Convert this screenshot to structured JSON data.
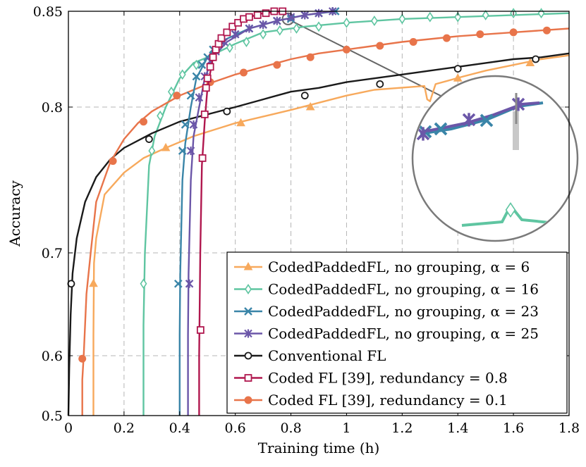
{
  "chart_data": {
    "type": "line",
    "title": "",
    "xlabel": "Training time (h)",
    "ylabel": "Accuracy",
    "xlim": [
      0,
      1.8
    ],
    "ylim": [
      0.5,
      0.85
    ],
    "x_ticks": [
      {
        "v": 0,
        "label": "0"
      },
      {
        "v": 0.2,
        "label": "0.2"
      },
      {
        "v": 0.4,
        "label": "0.4"
      },
      {
        "v": 0.6,
        "label": "0.6"
      },
      {
        "v": 0.8,
        "label": "0.8"
      },
      {
        "v": 1.0,
        "label": "1"
      },
      {
        "v": 1.2,
        "label": "1.2"
      },
      {
        "v": 1.4,
        "label": "1.4"
      },
      {
        "v": 1.6,
        "label": "1.6"
      },
      {
        "v": 1.8,
        "label": "1.8"
      }
    ],
    "y_ticks": [
      {
        "v": 0.5,
        "label": "0.5"
      },
      {
        "v": 0.6,
        "label": "0.6"
      },
      {
        "v": 0.7,
        "label": "0.7"
      },
      {
        "v": 0.8,
        "label": "0.8"
      },
      {
        "v": 0.85,
        "label": "0.85"
      }
    ],
    "y_scale": "nonlinear",
    "grid": true,
    "legend_position": "bottom-right",
    "series": [
      {
        "name": "CodedPaddedFL, no grouping, α = 6",
        "color": "#f7a95c",
        "marker": "triangle",
        "points": [
          [
            0.09,
            0.5
          ],
          [
            0.09,
            0.62
          ],
          [
            0.092,
            0.69
          ],
          [
            0.1,
            0.71
          ],
          [
            0.13,
            0.74
          ],
          [
            0.2,
            0.755
          ],
          [
            0.27,
            0.765
          ],
          [
            0.35,
            0.772
          ],
          [
            0.45,
            0.78
          ],
          [
            0.55,
            0.786
          ],
          [
            0.6,
            0.789
          ],
          [
            0.8,
            0.798
          ],
          [
            1.0,
            0.806
          ],
          [
            1.1,
            0.809
          ],
          [
            1.28,
            0.811
          ],
          [
            1.29,
            0.804
          ],
          [
            1.3,
            0.803
          ],
          [
            1.32,
            0.812
          ],
          [
            1.42,
            0.816
          ],
          [
            1.5,
            0.819
          ],
          [
            1.6,
            0.822
          ],
          [
            1.7,
            0.825
          ],
          [
            1.8,
            0.827
          ]
        ],
        "markers": [
          [
            0.09,
            0.67
          ],
          [
            0.35,
            0.772
          ],
          [
            0.62,
            0.789
          ],
          [
            0.87,
            0.8
          ],
          [
            1.4,
            0.815
          ],
          [
            1.66,
            0.823
          ]
        ]
      },
      {
        "name": "CodedPaddedFL, no grouping, α = 16",
        "color": "#5fc5a1",
        "marker": "diamond",
        "points": [
          [
            0.27,
            0.5
          ],
          [
            0.27,
            0.63
          ],
          [
            0.275,
            0.7
          ],
          [
            0.29,
            0.76
          ],
          [
            0.31,
            0.78
          ],
          [
            0.35,
            0.8
          ],
          [
            0.4,
            0.815
          ],
          [
            0.45,
            0.823
          ],
          [
            0.5,
            0.826
          ],
          [
            0.6,
            0.833
          ],
          [
            0.7,
            0.839
          ],
          [
            0.85,
            0.842
          ],
          [
            1.0,
            0.844
          ],
          [
            1.2,
            0.846
          ],
          [
            1.4,
            0.847
          ],
          [
            1.6,
            0.848
          ],
          [
            1.8,
            0.849
          ]
        ],
        "markers": [
          [
            0.27,
            0.67
          ],
          [
            0.3,
            0.77
          ],
          [
            0.33,
            0.794
          ],
          [
            0.37,
            0.808
          ],
          [
            0.41,
            0.817
          ],
          [
            0.46,
            0.822
          ],
          [
            0.52,
            0.827
          ],
          [
            0.58,
            0.831
          ],
          [
            0.64,
            0.834
          ],
          [
            0.7,
            0.838
          ],
          [
            0.76,
            0.84
          ],
          [
            0.82,
            0.841
          ],
          [
            0.9,
            0.842
          ],
          [
            1.0,
            0.844
          ],
          [
            1.1,
            0.845
          ],
          [
            1.2,
            0.846
          ],
          [
            1.3,
            0.847
          ],
          [
            1.4,
            0.847
          ],
          [
            1.5,
            0.848
          ],
          [
            1.6,
            0.849
          ],
          [
            1.7,
            0.849
          ]
        ]
      },
      {
        "name": "CodedPaddedFL, no grouping, α = 23",
        "color": "#3a85a8",
        "marker": "cross",
        "points": [
          [
            0.4,
            0.5
          ],
          [
            0.4,
            0.62
          ],
          [
            0.402,
            0.68
          ],
          [
            0.41,
            0.75
          ],
          [
            0.42,
            0.775
          ],
          [
            0.44,
            0.8
          ],
          [
            0.46,
            0.815
          ],
          [
            0.5,
            0.826
          ],
          [
            0.56,
            0.835
          ],
          [
            0.65,
            0.841
          ],
          [
            0.75,
            0.845
          ],
          [
            0.85,
            0.848
          ],
          [
            0.96,
            0.85
          ]
        ],
        "markers": [
          [
            0.395,
            0.67
          ],
          [
            0.41,
            0.77
          ],
          [
            0.42,
            0.788
          ],
          [
            0.44,
            0.806
          ],
          [
            0.46,
            0.816
          ],
          [
            0.48,
            0.822
          ],
          [
            0.5,
            0.826
          ],
          [
            0.52,
            0.83
          ],
          [
            0.55,
            0.834
          ],
          [
            0.6,
            0.838
          ],
          [
            0.65,
            0.841
          ],
          [
            0.7,
            0.843
          ],
          [
            0.75,
            0.845
          ],
          [
            0.8,
            0.846
          ],
          [
            0.85,
            0.848
          ],
          [
            0.9,
            0.849
          ],
          [
            0.96,
            0.85
          ]
        ]
      },
      {
        "name": "CodedPaddedFL, no grouping, α = 25",
        "color": "#6b56a8",
        "marker": "star",
        "points": [
          [
            0.43,
            0.5
          ],
          [
            0.43,
            0.62
          ],
          [
            0.432,
            0.68
          ],
          [
            0.44,
            0.75
          ],
          [
            0.45,
            0.78
          ],
          [
            0.47,
            0.8
          ],
          [
            0.49,
            0.815
          ],
          [
            0.52,
            0.826
          ],
          [
            0.57,
            0.834
          ],
          [
            0.65,
            0.841
          ],
          [
            0.75,
            0.845
          ],
          [
            0.85,
            0.848
          ],
          [
            0.95,
            0.85
          ]
        ],
        "markers": [
          [
            0.435,
            0.67
          ],
          [
            0.44,
            0.77
          ],
          [
            0.45,
            0.788
          ],
          [
            0.47,
            0.805
          ],
          [
            0.49,
            0.816
          ],
          [
            0.51,
            0.824
          ],
          [
            0.53,
            0.829
          ],
          [
            0.56,
            0.834
          ],
          [
            0.6,
            0.838
          ],
          [
            0.65,
            0.841
          ],
          [
            0.7,
            0.843
          ],
          [
            0.75,
            0.845
          ],
          [
            0.8,
            0.847
          ],
          [
            0.85,
            0.848
          ],
          [
            0.9,
            0.849
          ],
          [
            0.95,
            0.85
          ]
        ]
      },
      {
        "name": "Conventional FL",
        "color": "#1a1a1a",
        "marker": "circle-open",
        "points": [
          [
            0.0,
            0.5
          ],
          [
            0.003,
            0.58
          ],
          [
            0.008,
            0.64
          ],
          [
            0.015,
            0.68
          ],
          [
            0.03,
            0.71
          ],
          [
            0.06,
            0.735
          ],
          [
            0.1,
            0.752
          ],
          [
            0.15,
            0.764
          ],
          [
            0.2,
            0.772
          ],
          [
            0.3,
            0.782
          ],
          [
            0.4,
            0.79
          ],
          [
            0.5,
            0.795
          ],
          [
            0.6,
            0.8
          ],
          [
            0.7,
            0.804
          ],
          [
            0.8,
            0.808
          ],
          [
            0.9,
            0.81
          ],
          [
            1.0,
            0.813
          ],
          [
            1.1,
            0.815
          ],
          [
            1.2,
            0.817
          ],
          [
            1.3,
            0.819
          ],
          [
            1.4,
            0.821
          ],
          [
            1.5,
            0.823
          ],
          [
            1.6,
            0.825
          ],
          [
            1.7,
            0.826
          ],
          [
            1.8,
            0.828
          ]
        ],
        "markers": [
          [
            0.01,
            0.67
          ],
          [
            0.29,
            0.778
          ],
          [
            0.57,
            0.797
          ],
          [
            0.85,
            0.806
          ],
          [
            1.12,
            0.812
          ],
          [
            1.4,
            0.82
          ],
          [
            1.68,
            0.825
          ]
        ]
      },
      {
        "name": "Coded FL [39], redundancy = 0.8",
        "color": "#b0174e",
        "marker": "square-open",
        "points": [
          [
            0.47,
            0.5
          ],
          [
            0.47,
            0.6
          ],
          [
            0.474,
            0.7
          ],
          [
            0.48,
            0.76
          ],
          [
            0.49,
            0.79
          ],
          [
            0.5,
            0.81
          ],
          [
            0.52,
            0.826
          ],
          [
            0.55,
            0.836
          ],
          [
            0.6,
            0.843
          ],
          [
            0.65,
            0.847
          ],
          [
            0.7,
            0.849
          ],
          [
            0.77,
            0.85
          ]
        ],
        "markers": [
          [
            0.475,
            0.625
          ],
          [
            0.482,
            0.765
          ],
          [
            0.49,
            0.795
          ],
          [
            0.495,
            0.81
          ],
          [
            0.5,
            0.815
          ],
          [
            0.51,
            0.821
          ],
          [
            0.52,
            0.826
          ],
          [
            0.53,
            0.83
          ],
          [
            0.54,
            0.833
          ],
          [
            0.55,
            0.836
          ],
          [
            0.57,
            0.839
          ],
          [
            0.59,
            0.842
          ],
          [
            0.61,
            0.844
          ],
          [
            0.63,
            0.846
          ],
          [
            0.65,
            0.847
          ],
          [
            0.68,
            0.848
          ],
          [
            0.71,
            0.849
          ],
          [
            0.74,
            0.85
          ],
          [
            0.77,
            0.85
          ]
        ]
      },
      {
        "name": "Coded FL [39], redundancy = 0.1",
        "color": "#e8744a",
        "marker": "circle-filled",
        "points": [
          [
            0.05,
            0.5
          ],
          [
            0.05,
            0.56
          ],
          [
            0.055,
            0.6
          ],
          [
            0.065,
            0.66
          ],
          [
            0.08,
            0.7
          ],
          [
            0.1,
            0.735
          ],
          [
            0.15,
            0.762
          ],
          [
            0.2,
            0.778
          ],
          [
            0.25,
            0.789
          ],
          [
            0.3,
            0.797
          ],
          [
            0.4,
            0.806
          ],
          [
            0.5,
            0.812
          ],
          [
            0.6,
            0.817
          ],
          [
            0.7,
            0.821
          ],
          [
            0.8,
            0.825
          ],
          [
            0.9,
            0.828
          ],
          [
            1.0,
            0.83
          ],
          [
            1.2,
            0.834
          ],
          [
            1.4,
            0.837
          ],
          [
            1.6,
            0.839
          ],
          [
            1.8,
            0.841
          ]
        ],
        "markers": [
          [
            0.05,
            0.595
          ],
          [
            0.16,
            0.763
          ],
          [
            0.27,
            0.79
          ],
          [
            0.39,
            0.806
          ],
          [
            0.51,
            0.813
          ],
          [
            0.63,
            0.818
          ],
          [
            0.75,
            0.822
          ],
          [
            0.87,
            0.826
          ],
          [
            1.0,
            0.83
          ],
          [
            1.12,
            0.832
          ],
          [
            1.24,
            0.834
          ],
          [
            1.36,
            0.836
          ],
          [
            1.48,
            0.838
          ],
          [
            1.6,
            0.839
          ],
          [
            1.72,
            0.84
          ]
        ]
      }
    ]
  }
}
